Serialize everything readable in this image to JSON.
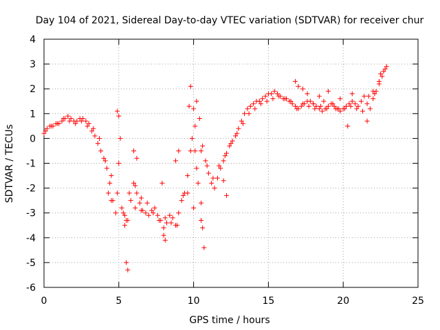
{
  "chart_data": {
    "type": "scatter",
    "title": "Day 104 of 2021, Sidereal Day-to-day VTEC variation (SDTVAR) for receiver chur",
    "xlabel": "GPS time / hours",
    "ylabel": "SDTVAR / TECUs",
    "xlim": [
      0,
      25
    ],
    "ylim": [
      -6,
      4
    ],
    "grid": true,
    "xticks": [
      0,
      5,
      10,
      15,
      20,
      25
    ],
    "yticks": [
      -6,
      -5,
      -4,
      -3,
      -2,
      -1,
      0,
      1,
      2,
      3,
      4
    ],
    "marker": "+",
    "color": "#ff0000",
    "series": [
      {
        "name": "SDTVAR",
        "x": [
          0.0,
          0.2,
          0.4,
          0.6,
          0.8,
          1.0,
          1.2,
          1.4,
          1.6,
          1.8,
          2.0,
          2.2,
          2.4,
          2.6,
          2.8,
          3.0,
          3.2,
          3.4,
          3.6,
          3.8,
          4.0,
          4.2,
          4.4,
          4.6,
          4.8,
          5.0,
          5.2,
          5.4,
          5.6,
          5.8,
          6.0,
          6.2,
          6.4,
          6.6,
          6.8,
          7.0,
          7.2,
          7.4,
          7.6,
          7.8,
          8.0,
          8.2,
          8.4,
          8.6,
          8.8,
          9.0,
          9.2,
          9.4,
          9.6,
          9.8,
          10.0,
          10.2,
          10.4,
          10.6,
          10.8,
          11.0,
          11.2,
          11.4,
          11.6,
          11.8,
          12.0,
          12.2,
          12.4,
          12.6,
          12.8,
          13.0,
          13.2,
          13.4,
          13.6,
          13.8,
          14.0,
          14.2,
          14.4,
          14.6,
          14.8,
          15.0,
          15.2,
          15.4,
          15.6,
          15.8,
          16.0,
          16.2,
          16.4,
          16.6,
          16.8,
          17.0,
          17.2,
          17.4,
          17.6,
          17.8,
          18.0,
          18.2,
          18.4,
          18.6,
          18.8,
          19.0,
          19.2,
          19.4,
          19.6,
          19.8,
          20.0,
          20.2,
          20.4,
          20.6,
          20.8,
          21.0,
          21.2,
          21.4,
          21.6,
          21.8,
          22.0,
          22.2,
          22.4,
          22.6,
          22.8,
          0.1,
          0.5,
          0.9,
          1.3,
          1.7,
          2.1,
          2.5,
          2.9,
          3.3,
          3.7,
          4.1,
          4.5,
          4.9,
          5.3,
          5.7,
          6.1,
          6.5,
          6.9,
          7.3,
          7.7,
          8.1,
          8.5,
          8.9,
          9.3,
          9.7,
          10.1,
          10.5,
          10.9,
          11.3,
          11.7,
          12.1,
          12.5,
          12.9,
          13.3,
          13.7,
          14.1,
          14.5,
          14.9,
          15.3,
          15.7,
          16.1,
          16.5,
          16.9,
          17.3,
          17.7,
          18.1,
          18.5,
          18.9,
          19.3,
          19.7,
          20.1,
          20.5,
          20.9,
          21.3,
          21.7,
          22.1,
          22.5,
          22.9,
          4.9,
          5.0,
          5.1,
          4.3,
          4.5,
          5.4,
          5.5,
          5.6,
          5.5,
          6.1,
          6.2,
          6.0,
          6.5,
          8.0,
          8.1,
          7.9,
          9.8,
          9.9,
          10.0,
          10.1,
          10.2,
          10.3,
          9.6,
          10.5,
          10.6,
          10.7,
          10.5,
          9.0,
          8.8,
          12.0,
          12.2,
          16.8,
          17.0,
          17.3,
          17.6,
          18.0,
          18.4,
          18.7,
          19.0,
          19.5,
          20.3,
          20.6,
          19.8,
          21.6,
          22.0,
          22.4,
          22.7
        ],
        "y": [
          0.2,
          0.4,
          0.5,
          0.5,
          0.6,
          0.6,
          0.7,
          0.8,
          0.9,
          0.8,
          0.7,
          0.7,
          0.8,
          0.8,
          0.7,
          0.6,
          0.3,
          0.1,
          -0.2,
          -0.5,
          -0.8,
          -1.2,
          -1.8,
          -2.5,
          -3.0,
          -1.0,
          -2.8,
          -3.1,
          -3.3,
          -2.5,
          -1.8,
          -2.2,
          -2.6,
          -2.9,
          -3.0,
          -3.1,
          -2.9,
          -2.8,
          -3.1,
          -3.3,
          -3.6,
          -3.4,
          -3.1,
          -3.2,
          -3.5,
          -3.0,
          -2.5,
          -2.2,
          -1.5,
          -0.5,
          1.2,
          1.5,
          0.8,
          -0.3,
          -0.9,
          -1.4,
          -1.8,
          -2.0,
          -1.6,
          -1.2,
          -0.9,
          -0.6,
          -0.3,
          -0.1,
          0.1,
          0.4,
          0.7,
          1.0,
          1.2,
          1.3,
          1.4,
          1.5,
          1.5,
          1.6,
          1.7,
          1.8,
          1.8,
          1.9,
          1.8,
          1.7,
          1.6,
          1.6,
          1.5,
          1.4,
          1.3,
          1.2,
          1.3,
          1.4,
          1.5,
          1.5,
          1.4,
          1.3,
          1.2,
          1.1,
          1.2,
          1.3,
          1.4,
          1.3,
          1.2,
          1.1,
          1.2,
          1.3,
          1.4,
          1.5,
          1.4,
          1.3,
          1.5,
          1.7,
          1.4,
          1.2,
          1.6,
          1.9,
          2.2,
          2.5,
          2.8,
          0.3,
          0.5,
          0.6,
          0.8,
          0.7,
          0.6,
          0.7,
          0.5,
          0.4,
          0.0,
          -0.9,
          -1.5,
          -2.2,
          -3.0,
          -2.2,
          -1.9,
          -2.4,
          -2.6,
          -3.0,
          -3.3,
          -3.2,
          -3.4,
          -3.5,
          -2.3,
          1.3,
          0.5,
          -0.5,
          -1.1,
          -1.6,
          -1.1,
          -0.7,
          -0.2,
          0.2,
          0.6,
          1.0,
          1.2,
          1.4,
          1.5,
          1.6,
          1.7,
          1.6,
          1.5,
          1.2,
          1.4,
          1.3,
          1.2,
          1.3,
          1.2,
          1.4,
          1.2,
          1.2,
          1.3,
          1.2,
          1.1,
          1.7,
          1.8,
          2.6,
          2.9,
          1.1,
          0.9,
          0.0,
          -2.2,
          -2.5,
          -3.5,
          -5.0,
          -5.3,
          -3.3,
          -2.8,
          -0.8,
          -0.5,
          -2.9,
          -3.9,
          -4.1,
          -1.8,
          2.1,
          0.0,
          -2.8,
          -0.5,
          -1.2,
          -1.8,
          -2.2,
          -3.3,
          -3.6,
          -4.4,
          -2.6,
          -0.5,
          -0.9,
          -1.7,
          -2.3,
          2.3,
          2.1,
          2.0,
          1.8,
          1.4,
          1.7,
          1.5,
          1.9,
          1.2,
          0.5,
          1.8,
          1.6,
          0.7,
          1.9,
          2.3,
          2.7
        ]
      }
    ]
  }
}
